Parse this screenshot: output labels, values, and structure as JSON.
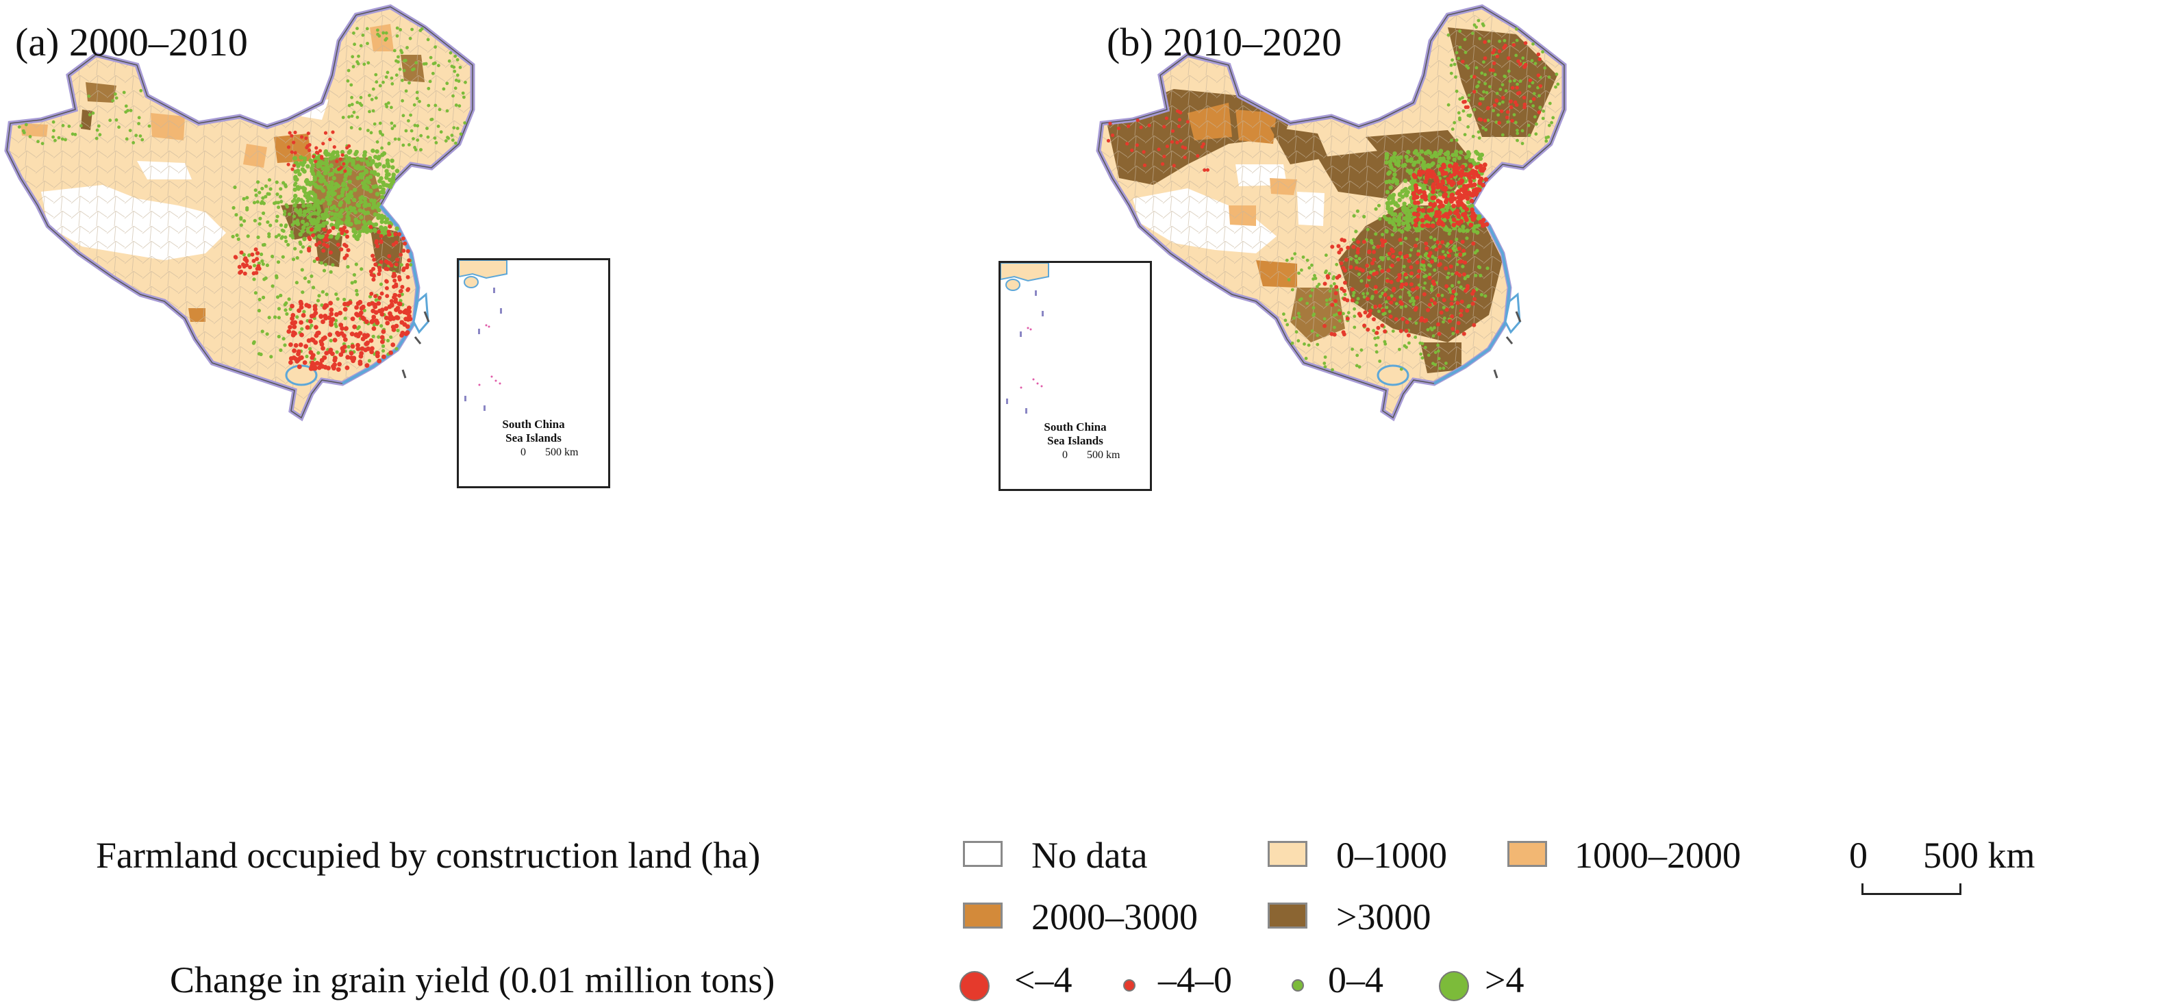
{
  "panels": [
    {
      "id": "a",
      "title": "(a) 2000–2010"
    },
    {
      "id": "b",
      "title": "(b) 2010–2020"
    }
  ],
  "inset": {
    "label_line1": "South China",
    "label_line2": "Sea Islands",
    "scale_zero": "0",
    "scale_end": "500 km"
  },
  "legend": {
    "farmland_title": "Farmland occupied by construction land (ha)",
    "farmland_classes": [
      {
        "label": "No data",
        "color": "#ffffff"
      },
      {
        "label": "0–1000",
        "color": "#fbdeb0"
      },
      {
        "label": "1000–2000",
        "color": "#f2b773"
      },
      {
        "label": "2000–3000",
        "color": "#d38a3a"
      },
      {
        "label": ">3000",
        "color": "#8b6532"
      }
    ],
    "yield_title": "Change in grain yield (0.01 million tons)",
    "yield_classes": [
      {
        "label": "<–4",
        "color": "#e53a2c",
        "size": "large"
      },
      {
        "label": "–4–0",
        "color": "#e53a2c",
        "size": "small"
      },
      {
        "label": "0–4",
        "color": "#7cbb3a",
        "size": "small"
      },
      {
        "label": ">4",
        "color": "#7cbb3a",
        "size": "large"
      }
    ],
    "scale_zero": "0",
    "scale_end": "500 km"
  },
  "colors": {
    "border": "#a79bd6",
    "coast": "#5da7d8",
    "county_line": "#b8a896"
  }
}
